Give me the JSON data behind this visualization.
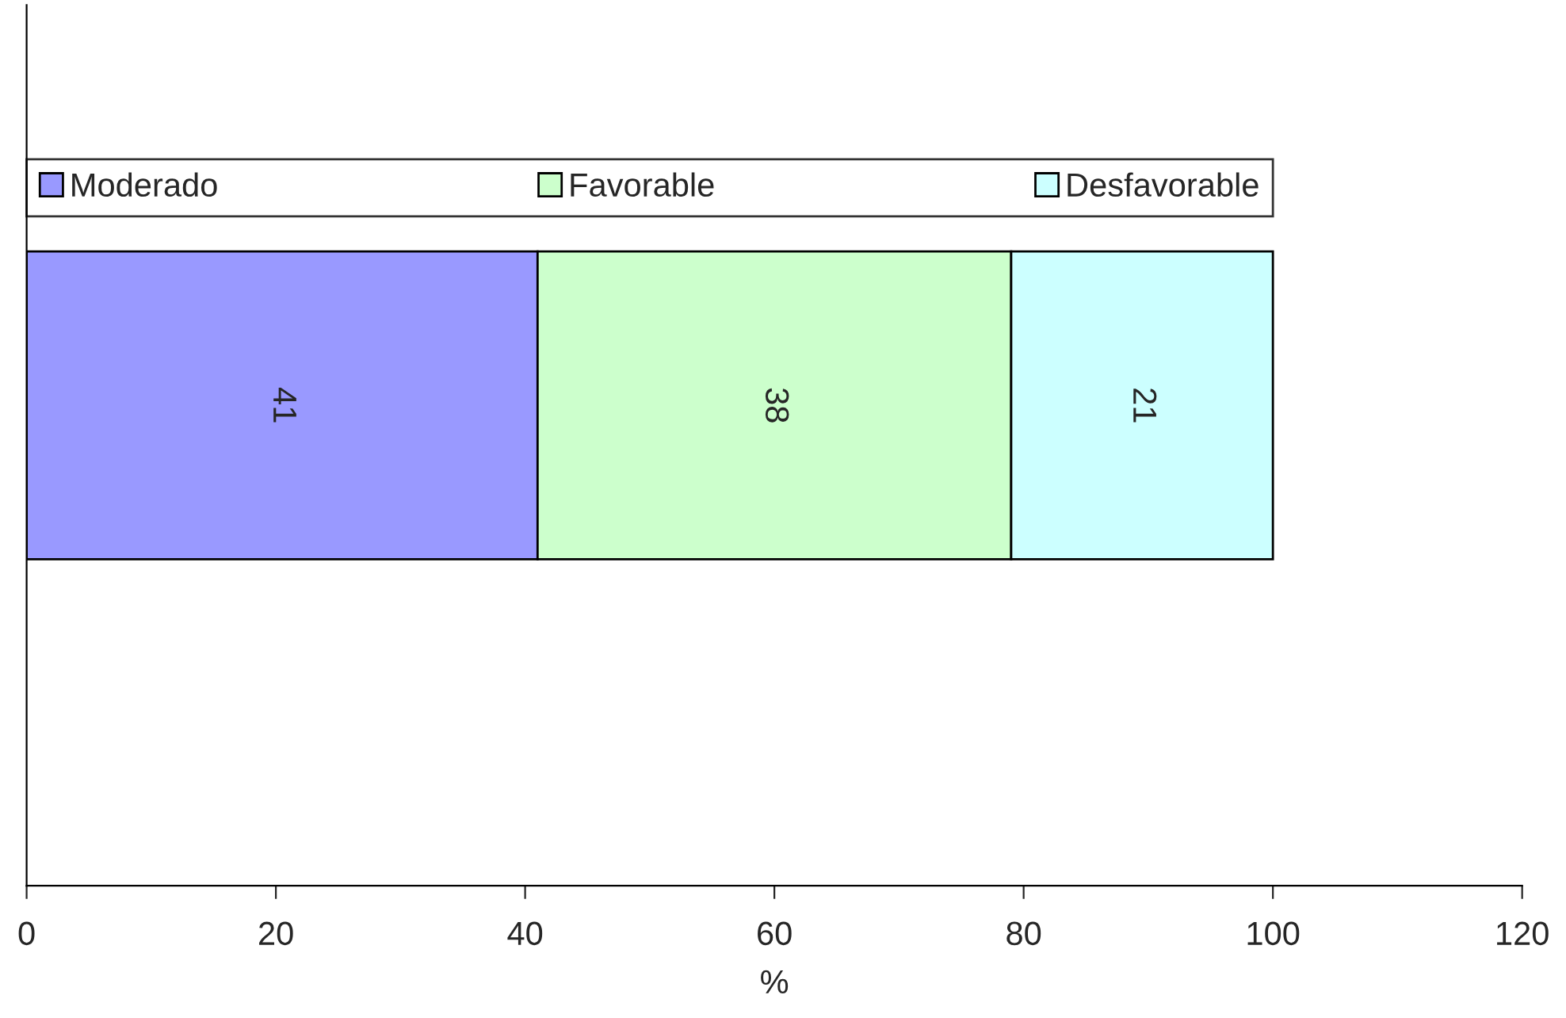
{
  "chart_data": {
    "type": "bar",
    "orientation": "horizontal",
    "stacked": true,
    "categories": [
      null
    ],
    "series": [
      {
        "name": "Moderado",
        "color": "#9999ff",
        "values": [
          41
        ]
      },
      {
        "name": "Favorable",
        "color": "#ccffcc",
        "values": [
          38
        ]
      },
      {
        "name": "Desfavorable",
        "color": "#ccffff",
        "values": [
          21
        ]
      }
    ],
    "xlabel": "%",
    "xlim": [
      0,
      120
    ],
    "xticks": [
      0,
      20,
      40,
      60,
      80,
      100,
      120
    ],
    "data_labels": true,
    "legend": "top",
    "grid": false
  }
}
